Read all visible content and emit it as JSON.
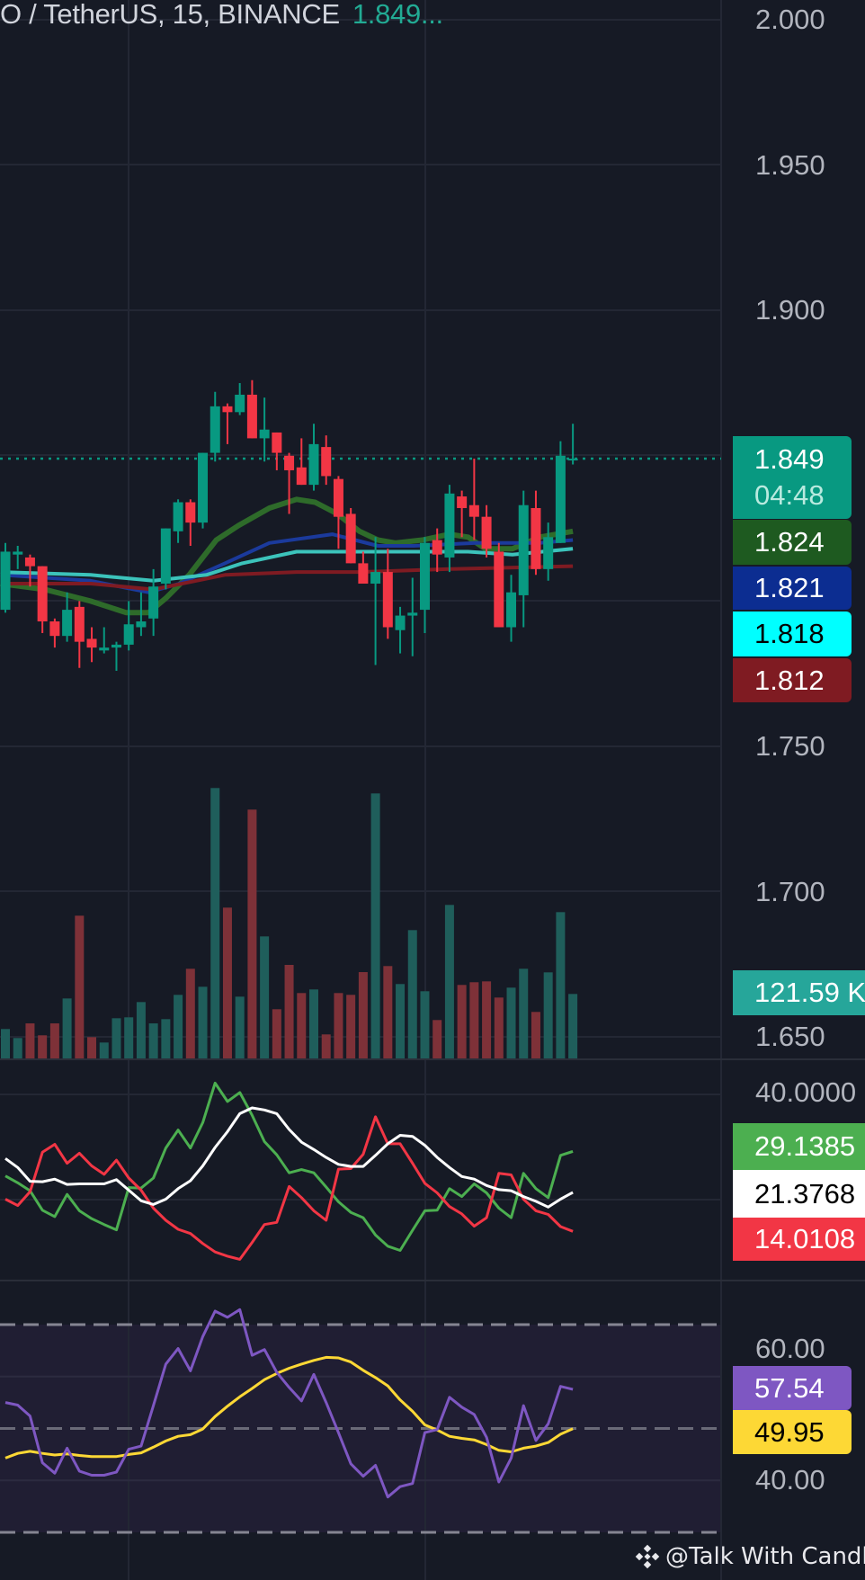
{
  "header": {
    "symbol": "O / TetherUS, 15, BINANCE",
    "last_price": "1.849..."
  },
  "colors": {
    "up": "#089981",
    "down": "#f23645",
    "background": "#161a25",
    "grid": "#232734"
  },
  "price_axis": {
    "ticks": [
      "2.000",
      "1.950",
      "1.900",
      "1.750",
      "1.700",
      "1.650"
    ]
  },
  "price_labels": {
    "last": {
      "value": "1.849",
      "countdown": "04:48",
      "color": "#089981"
    },
    "ma": [
      {
        "value": "1.824",
        "color": "#1e5a20"
      },
      {
        "value": "1.821",
        "color": "#0c2d91"
      },
      {
        "value": "1.818",
        "color": "#00ffff"
      },
      {
        "value": "1.812",
        "color": "#7f1b22"
      }
    ]
  },
  "volume_label": {
    "value": "121.59 K",
    "color": "#26a69a"
  },
  "dmi_axis": {
    "ticks": [
      "40.0000"
    ]
  },
  "dmi_labels": [
    {
      "value": "29.1385",
      "color": "#4caf50"
    },
    {
      "value": "21.3768",
      "color": "#ffffff"
    },
    {
      "value": "14.0108",
      "color": "#f23645"
    }
  ],
  "rsi_axis": {
    "ticks": [
      "60.00",
      "40.00"
    ]
  },
  "rsi_labels": [
    {
      "value": "57.54",
      "color": "#7e57c2"
    },
    {
      "value": "49.95",
      "color": "#fdd835"
    }
  ],
  "watermark": {
    "text": "@Talk With Candle",
    "icon": "binance-logo-icon"
  },
  "chart_data": {
    "type": "candlestick",
    "price_range": [
      1.65,
      2.0
    ],
    "last_price": 1.849,
    "candles_ohlc": [
      [
        1.797,
        1.82,
        1.796,
        1.817
      ],
      [
        1.816,
        1.819,
        1.811,
        1.817
      ],
      [
        1.815,
        1.816,
        1.805,
        1.812
      ],
      [
        1.812,
        1.812,
        1.789,
        1.793
      ],
      [
        1.793,
        1.794,
        1.784,
        1.788
      ],
      [
        1.788,
        1.803,
        1.786,
        1.797
      ],
      [
        1.798,
        1.8,
        1.777,
        1.786
      ],
      [
        1.787,
        1.791,
        1.779,
        1.784
      ],
      [
        1.783,
        1.791,
        1.782,
        1.784
      ],
      [
        1.784,
        1.786,
        1.776,
        1.785
      ],
      [
        1.785,
        1.8,
        1.783,
        1.792
      ],
      [
        1.791,
        1.803,
        1.788,
        1.793
      ],
      [
        1.794,
        1.811,
        1.788,
        1.805
      ],
      [
        1.806,
        1.825,
        1.804,
        1.825
      ],
      [
        1.824,
        1.835,
        1.82,
        1.834
      ],
      [
        1.834,
        1.835,
        1.819,
        1.827
      ],
      [
        1.827,
        1.851,
        1.825,
        1.851
      ],
      [
        1.851,
        1.872,
        1.848,
        1.867
      ],
      [
        1.867,
        1.868,
        1.854,
        1.865
      ],
      [
        1.865,
        1.875,
        1.864,
        1.871
      ],
      [
        1.871,
        1.876,
        1.856,
        1.856
      ],
      [
        1.856,
        1.87,
        1.848,
        1.859
      ],
      [
        1.858,
        1.858,
        1.845,
        1.851
      ],
      [
        1.85,
        1.851,
        1.83,
        1.845
      ],
      [
        1.846,
        1.856,
        1.84,
        1.84
      ],
      [
        1.84,
        1.861,
        1.838,
        1.854
      ],
      [
        1.853,
        1.857,
        1.84,
        1.843
      ],
      [
        1.842,
        1.843,
        1.818,
        1.829
      ],
      [
        1.83,
        1.832,
        1.813,
        1.813
      ],
      [
        1.813,
        1.817,
        1.806,
        1.806
      ],
      [
        1.806,
        1.822,
        1.778,
        1.81
      ],
      [
        1.81,
        1.818,
        1.787,
        1.791
      ],
      [
        1.79,
        1.798,
        1.782,
        1.795
      ],
      [
        1.795,
        1.808,
        1.781,
        1.796
      ],
      [
        1.797,
        1.822,
        1.789,
        1.82
      ],
      [
        1.821,
        1.825,
        1.81,
        1.816
      ],
      [
        1.815,
        1.84,
        1.81,
        1.837
      ],
      [
        1.836,
        1.838,
        1.822,
        1.832
      ],
      [
        1.833,
        1.849,
        1.821,
        1.829
      ],
      [
        1.829,
        1.833,
        1.815,
        1.818
      ],
      [
        1.817,
        1.82,
        1.791,
        1.791
      ],
      [
        1.791,
        1.809,
        1.786,
        1.803
      ],
      [
        1.802,
        1.838,
        1.791,
        1.833
      ],
      [
        1.832,
        1.838,
        1.809,
        1.811
      ],
      [
        1.811,
        1.827,
        1.807,
        1.822
      ],
      [
        1.82,
        1.855,
        1.82,
        1.85
      ],
      [
        1.849,
        1.861,
        1.847,
        1.849
      ]
    ],
    "volume_k": [
      55.5,
      38.5,
      66.1,
      43.6,
      66.1,
      113.1,
      269.2,
      40.2,
      30.0,
      75.8,
      77.5,
      106.3,
      66.1,
      74.1,
      119.9,
      169.1,
      135.2,
      510.0,
      284.4,
      116.5,
      469.3,
      230.1,
      92.8,
      176.4,
      123.3,
      130.1,
      45.3,
      123.3,
      119.9,
      162.8,
      499.8,
      174.2,
      140.3,
      242.0,
      126.7,
      72.4,
      289.5,
      138.6,
      143.7,
      145.3,
      114.8,
      133.5,
      169.1,
      87.7,
      162.3,
      275.9,
      121.59
    ],
    "moving_averages": [
      {
        "color": "#2e6b2a",
        "points": [
          [
            -0.4,
            1.806
          ],
          [
            3.2,
            1.804
          ],
          [
            6.9,
            1.8
          ],
          [
            9.8,
            1.796
          ],
          [
            11.6,
            1.796
          ],
          [
            13,
            1.801
          ],
          [
            14.9,
            1.809
          ],
          [
            17.1,
            1.821
          ],
          [
            18.9,
            1.826
          ],
          [
            21.4,
            1.832
          ],
          [
            23.6,
            1.835
          ],
          [
            25.1,
            1.834
          ],
          [
            26.9,
            1.83
          ],
          [
            28.7,
            1.824
          ],
          [
            30.2,
            1.821
          ],
          [
            31.6,
            1.82
          ],
          [
            33.8,
            1.821
          ],
          [
            36,
            1.823
          ],
          [
            37.5,
            1.822
          ],
          [
            38.9,
            1.818
          ],
          [
            41.1,
            1.818
          ],
          [
            43.3,
            1.822
          ],
          [
            46,
            1.824
          ]
        ]
      },
      {
        "color": "#1b3a9c",
        "points": [
          [
            -0.4,
            1.809
          ],
          [
            6.9,
            1.807
          ],
          [
            11.6,
            1.803
          ],
          [
            14.1,
            1.806
          ],
          [
            17.8,
            1.813
          ],
          [
            21.4,
            1.82
          ],
          [
            26.5,
            1.823
          ],
          [
            30.2,
            1.819
          ],
          [
            33.1,
            1.819
          ],
          [
            38.2,
            1.82
          ],
          [
            43.3,
            1.82
          ],
          [
            46,
            1.821
          ]
        ]
      },
      {
        "color": "#3cc3bb",
        "points": [
          [
            -0.4,
            1.81
          ],
          [
            6.9,
            1.809
          ],
          [
            12,
            1.807
          ],
          [
            16.3,
            1.809
          ],
          [
            19.2,
            1.813
          ],
          [
            23.6,
            1.817
          ],
          [
            28.7,
            1.817
          ],
          [
            33.1,
            1.817
          ],
          [
            37.5,
            1.817
          ],
          [
            41.1,
            1.816
          ],
          [
            46,
            1.818
          ]
        ]
      },
      {
        "color": "#7f1b22",
        "points": [
          [
            -0.4,
            1.806
          ],
          [
            6.9,
            1.806
          ],
          [
            12,
            1.804
          ],
          [
            17.8,
            1.809
          ],
          [
            23.6,
            1.81
          ],
          [
            28.7,
            1.81
          ],
          [
            36,
            1.811
          ],
          [
            46,
            1.812
          ]
        ]
      }
    ],
    "dmi": {
      "plus_di": {
        "color": "#4caf50",
        "values": [
          24.5,
          23.2,
          21.7,
          18.0,
          16.8,
          21.0,
          17.9,
          16.4,
          15.3,
          14.3,
          22.3,
          22.2,
          24.1,
          29.8,
          33.2,
          29.8,
          34.6,
          42.1,
          38.6,
          40.3,
          36.0,
          31.0,
          28.5,
          25.1,
          25.7,
          25.1,
          22.4,
          19.6,
          17.6,
          16.6,
          13.3,
          11.2,
          10.4,
          14.2,
          17.9,
          18.0,
          22.1,
          20.6,
          23.0,
          21.3,
          18.4,
          16.6,
          25.0,
          22.1,
          20.4,
          28.4,
          29.14
        ]
      },
      "minus_di": {
        "color": "#f23645",
        "values": [
          20.1,
          18.9,
          21.5,
          29.0,
          30.5,
          26.9,
          28.8,
          26.4,
          24.8,
          27.5,
          24.1,
          21.8,
          18.4,
          16.1,
          14.4,
          13.6,
          11.7,
          10.1,
          9.3,
          8.7,
          11.9,
          15.3,
          15.7,
          22.5,
          20.4,
          17.9,
          16.1,
          25.8,
          25.9,
          28.6,
          35.7,
          30.6,
          30.6,
          26.9,
          23.1,
          21.3,
          18.7,
          17.3,
          15.0,
          16.6,
          25.0,
          24.7,
          20.1,
          17.9,
          17.2,
          14.9,
          14.01
        ]
      },
      "adx": {
        "color": "#ffffff",
        "values": [
          27.8,
          26.1,
          23.5,
          23.4,
          23.9,
          22.9,
          23.0,
          23.0,
          23.0,
          23.8,
          21.8,
          19.8,
          19.1,
          20.1,
          22.1,
          23.6,
          26.4,
          29.9,
          32.9,
          36.3,
          37.4,
          37.0,
          36.3,
          33.3,
          30.9,
          29.5,
          28.0,
          26.7,
          26.3,
          26.3,
          28.4,
          30.6,
          32.2,
          32.0,
          30.3,
          28.0,
          26.1,
          24.4,
          23.9,
          22.7,
          21.9,
          21.7,
          20.6,
          19.7,
          18.6,
          20.1,
          21.38
        ]
      }
    },
    "rsi": {
      "upper_band": 70,
      "middle": 50,
      "lower_band": 30,
      "rsi": {
        "color": "#7e57c2",
        "values": [
          55.0,
          54.5,
          52.4,
          43.4,
          41.4,
          46.2,
          41.8,
          41.0,
          41.0,
          41.6,
          46.0,
          46.6,
          54.4,
          62.4,
          65.4,
          61.1,
          67.7,
          72.6,
          71.4,
          72.9,
          64.1,
          65.2,
          60.8,
          57.9,
          55.3,
          60.4,
          55.0,
          49.2,
          43.2,
          40.8,
          42.9,
          36.8,
          38.8,
          39.4,
          49.2,
          49.8,
          56.0,
          54.1,
          52.7,
          48.3,
          39.7,
          44.3,
          54.4,
          47.7,
          50.9,
          58.1,
          57.54
        ]
      },
      "rsi_ma": {
        "color": "#fdd835",
        "values": [
          44.3,
          45.2,
          45.6,
          45.2,
          44.9,
          45.1,
          44.8,
          44.6,
          44.6,
          44.6,
          45.0,
          45.3,
          46.4,
          47.6,
          48.5,
          48.8,
          49.9,
          52.3,
          54.3,
          56.1,
          57.7,
          59.4,
          60.6,
          61.6,
          62.4,
          63.1,
          63.7,
          63.6,
          62.8,
          61.2,
          59.8,
          58.2,
          55.5,
          53.3,
          50.7,
          49.7,
          48.5,
          48.1,
          47.8,
          46.9,
          45.8,
          45.5,
          46.2,
          46.6,
          47.3,
          48.9,
          49.95
        ]
      }
    }
  }
}
